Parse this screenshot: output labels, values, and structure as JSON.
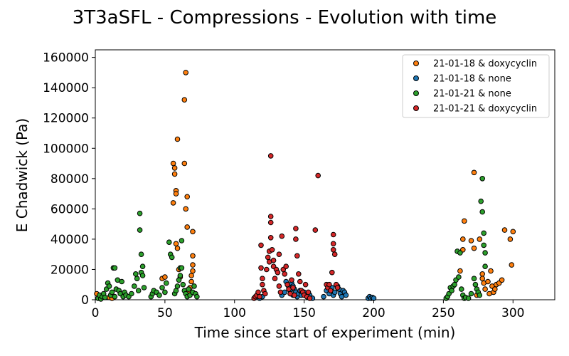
{
  "chart_data": {
    "type": "scatter",
    "title": "3T3aSFL - Compressions - Evolution with time",
    "xlabel": "Time since start of experiment (min)",
    "ylabel": "E Chadwick (Pa)",
    "xlim": [
      0,
      330
    ],
    "ylim": [
      0,
      165000
    ],
    "xticks": [
      0,
      50,
      100,
      150,
      200,
      250,
      300
    ],
    "yticks": [
      0,
      20000,
      40000,
      60000,
      80000,
      100000,
      120000,
      140000,
      160000
    ],
    "grid": false,
    "legend_position": "top-right",
    "series": [
      {
        "name": "21-01-18 & doxycyclin",
        "color": "#ff7f0e",
        "points": [
          [
            1,
            4000
          ],
          [
            4,
            2000
          ],
          [
            10,
            1500
          ],
          [
            12,
            1000
          ],
          [
            48,
            14000
          ],
          [
            50,
            15000
          ],
          [
            56,
            90000
          ],
          [
            56,
            64000
          ],
          [
            57,
            83000
          ],
          [
            57,
            87000
          ],
          [
            58,
            72000
          ],
          [
            58,
            70000
          ],
          [
            58,
            37000
          ],
          [
            59,
            106000
          ],
          [
            59,
            34000
          ],
          [
            60,
            20000
          ],
          [
            61,
            15000
          ],
          [
            64,
            132000
          ],
          [
            64,
            90000
          ],
          [
            65,
            150000
          ],
          [
            65,
            60000
          ],
          [
            66,
            68000
          ],
          [
            66,
            48000
          ],
          [
            67,
            6000
          ],
          [
            68,
            8000
          ],
          [
            69,
            16000
          ],
          [
            69,
            12000
          ],
          [
            70,
            45000
          ],
          [
            70,
            29000
          ],
          [
            70,
            23000
          ],
          [
            70,
            19000
          ],
          [
            262,
            19000
          ],
          [
            264,
            33000
          ],
          [
            264,
            40000
          ],
          [
            265,
            52000
          ],
          [
            270,
            39000
          ],
          [
            272,
            84000
          ],
          [
            272,
            34000
          ],
          [
            274,
            3000
          ],
          [
            276,
            40000
          ],
          [
            278,
            17000
          ],
          [
            278,
            14000
          ],
          [
            279,
            11000
          ],
          [
            280,
            7000
          ],
          [
            282,
            12000
          ],
          [
            283,
            4000
          ],
          [
            284,
            19000
          ],
          [
            285,
            9000
          ],
          [
            286,
            5000
          ],
          [
            287,
            7000
          ],
          [
            288,
            10000
          ],
          [
            290,
            11000
          ],
          [
            292,
            13000
          ],
          [
            294,
            46000
          ],
          [
            298,
            40000
          ],
          [
            299,
            23000
          ],
          [
            300,
            45000
          ]
        ]
      },
      {
        "name": "21-01-18 & none",
        "color": "#1f77b4",
        "points": [
          [
            118,
            1000
          ],
          [
            120,
            2000
          ],
          [
            134,
            3000
          ],
          [
            136,
            5000
          ],
          [
            137,
            12000
          ],
          [
            138,
            10000
          ],
          [
            139,
            8000
          ],
          [
            140,
            6000
          ],
          [
            140,
            4000
          ],
          [
            141,
            11000
          ],
          [
            142,
            3000
          ],
          [
            142,
            9000
          ],
          [
            143,
            7000
          ],
          [
            144,
            5000
          ],
          [
            145,
            2000
          ],
          [
            146,
            4000
          ],
          [
            147,
            6000
          ],
          [
            148,
            3000
          ],
          [
            150,
            5000
          ],
          [
            152,
            2000
          ],
          [
            154,
            3000
          ],
          [
            156,
            1000
          ],
          [
            164,
            2000
          ],
          [
            166,
            6000
          ],
          [
            168,
            4000
          ],
          [
            170,
            8000
          ],
          [
            171,
            3000
          ],
          [
            172,
            5000
          ],
          [
            174,
            9000
          ],
          [
            175,
            7000
          ],
          [
            176,
            4000
          ],
          [
            177,
            2000
          ],
          [
            178,
            6000
          ],
          [
            179,
            5000
          ],
          [
            180,
            3000
          ],
          [
            196,
            1000
          ],
          [
            197,
            2000
          ],
          [
            198,
            1000
          ],
          [
            199,
            1500
          ],
          [
            200,
            1000
          ]
        ]
      },
      {
        "name": "21-01-21 & none",
        "color": "#2ca02c",
        "points": [
          [
            2,
            1000
          ],
          [
            3,
            3000
          ],
          [
            4,
            500
          ],
          [
            5,
            2000
          ],
          [
            6,
            4000
          ],
          [
            7,
            1500
          ],
          [
            8,
            7000
          ],
          [
            9,
            11000
          ],
          [
            10,
            9000
          ],
          [
            11,
            3000
          ],
          [
            12,
            5000
          ],
          [
            13,
            21000
          ],
          [
            14,
            21000
          ],
          [
            14,
            2000
          ],
          [
            15,
            7000
          ],
          [
            16,
            13000
          ],
          [
            17,
            6000
          ],
          [
            18,
            4000
          ],
          [
            19,
            12000
          ],
          [
            20,
            2000
          ],
          [
            21,
            5000
          ],
          [
            22,
            3000
          ],
          [
            24,
            2000
          ],
          [
            26,
            4000
          ],
          [
            28,
            9000
          ],
          [
            29,
            17000
          ],
          [
            30,
            14000
          ],
          [
            31,
            6000
          ],
          [
            32,
            57000
          ],
          [
            32,
            46000
          ],
          [
            33,
            30000
          ],
          [
            33,
            18000
          ],
          [
            34,
            22000
          ],
          [
            34,
            16000
          ],
          [
            35,
            8000
          ],
          [
            40,
            2000
          ],
          [
            41,
            4000
          ],
          [
            42,
            6000
          ],
          [
            44,
            5000
          ],
          [
            46,
            3000
          ],
          [
            48,
            8000
          ],
          [
            50,
            5000
          ],
          [
            51,
            11000
          ],
          [
            53,
            38000
          ],
          [
            54,
            30000
          ],
          [
            55,
            28000
          ],
          [
            57,
            4000
          ],
          [
            58,
            6000
          ],
          [
            59,
            9000
          ],
          [
            60,
            13000
          ],
          [
            61,
            16000
          ],
          [
            61,
            21000
          ],
          [
            62,
            39000
          ],
          [
            62,
            21000
          ],
          [
            63,
            10000
          ],
          [
            64,
            6000
          ],
          [
            65,
            4000
          ],
          [
            66,
            2000
          ],
          [
            67,
            7000
          ],
          [
            68,
            3000
          ],
          [
            70,
            5000
          ],
          [
            71,
            9000
          ],
          [
            72,
            4000
          ],
          [
            73,
            2000
          ],
          [
            252,
            1000
          ],
          [
            253,
            2000
          ],
          [
            254,
            4000
          ],
          [
            255,
            8000
          ],
          [
            256,
            6000
          ],
          [
            257,
            9000
          ],
          [
            258,
            10000
          ],
          [
            259,
            13000
          ],
          [
            260,
            32000
          ],
          [
            261,
            15000
          ],
          [
            262,
            31000
          ],
          [
            263,
            7000
          ],
          [
            264,
            3000
          ],
          [
            265,
            1000
          ],
          [
            266,
            1500
          ],
          [
            268,
            1000
          ],
          [
            270,
            4000
          ],
          [
            272,
            14000
          ],
          [
            273,
            10000
          ],
          [
            274,
            7000
          ],
          [
            275,
            5000
          ],
          [
            276,
            3000
          ],
          [
            277,
            65000
          ],
          [
            278,
            58000
          ],
          [
            278,
            80000
          ],
          [
            279,
            44000
          ],
          [
            279,
            36000
          ],
          [
            280,
            31000
          ],
          [
            280,
            22000
          ]
        ]
      },
      {
        "name": "21-01-21 & doxycyclin",
        "color": "#d62728",
        "points": [
          [
            114,
            1000
          ],
          [
            115,
            2000
          ],
          [
            116,
            3000
          ],
          [
            117,
            5000
          ],
          [
            118,
            2000
          ],
          [
            119,
            36000
          ],
          [
            119,
            21000
          ],
          [
            120,
            14000
          ],
          [
            120,
            10000
          ],
          [
            121,
            6000
          ],
          [
            122,
            4000
          ],
          [
            123,
            20000
          ],
          [
            124,
            28000
          ],
          [
            125,
            32000
          ],
          [
            125,
            25000
          ],
          [
            126,
            95000
          ],
          [
            126,
            55000
          ],
          [
            126,
            51000
          ],
          [
            126,
            41000
          ],
          [
            127,
            33000
          ],
          [
            128,
            26000
          ],
          [
            128,
            22000
          ],
          [
            129,
            14000
          ],
          [
            130,
            20000
          ],
          [
            131,
            18000
          ],
          [
            132,
            30000
          ],
          [
            132,
            9000
          ],
          [
            133,
            5000
          ],
          [
            134,
            42000
          ],
          [
            135,
            20000
          ],
          [
            136,
            17000
          ],
          [
            137,
            22000
          ],
          [
            138,
            10000
          ],
          [
            139,
            7000
          ],
          [
            140,
            4000
          ],
          [
            141,
            13000
          ],
          [
            142,
            8000
          ],
          [
            143,
            3000
          ],
          [
            144,
            47000
          ],
          [
            144,
            40000
          ],
          [
            145,
            29000
          ],
          [
            146,
            17000
          ],
          [
            147,
            12000
          ],
          [
            148,
            6000
          ],
          [
            149,
            5000
          ],
          [
            150,
            3000
          ],
          [
            151,
            10000
          ],
          [
            152,
            2000
          ],
          [
            153,
            5000
          ],
          [
            154,
            1000
          ],
          [
            158,
            46000
          ],
          [
            160,
            82000
          ],
          [
            166,
            10000
          ],
          [
            167,
            8000
          ],
          [
            168,
            10000
          ],
          [
            169,
            6000
          ],
          [
            170,
            18000
          ],
          [
            171,
            43000
          ],
          [
            171,
            37000
          ],
          [
            171,
            33000
          ],
          [
            172,
            30000
          ],
          [
            173,
            10000
          ],
          [
            174,
            8000
          ]
        ]
      }
    ]
  }
}
